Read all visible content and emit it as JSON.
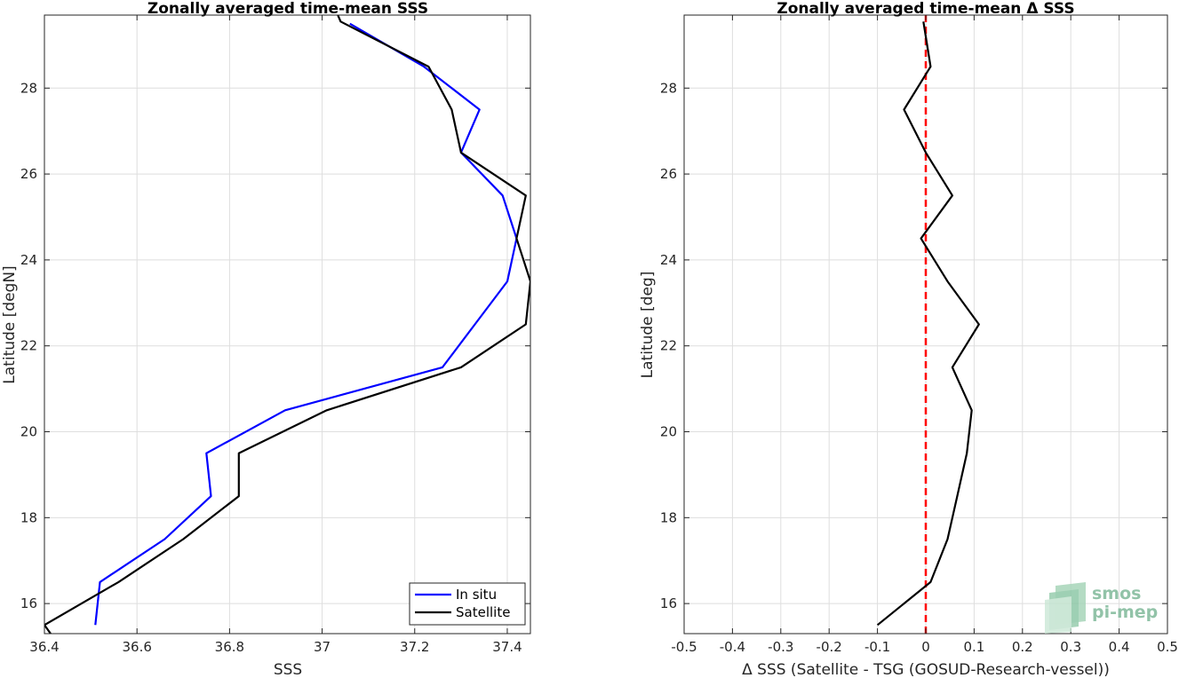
{
  "chart_data": [
    {
      "type": "line",
      "title": "Zonally averaged time-mean SSS",
      "xlabel": "SSS",
      "ylabel": "Latitude [degN]",
      "xlim": [
        36.4,
        37.45
      ],
      "ylim": [
        15.3,
        29.7
      ],
      "xticks": [
        36.4,
        36.6,
        36.8,
        37.0,
        37.2,
        37.4
      ],
      "xtick_labels": [
        "36.4",
        "36.6",
        "36.8",
        "37",
        "37.2",
        "37.4"
      ],
      "yticks": [
        16,
        18,
        20,
        22,
        24,
        26,
        28
      ],
      "ytick_labels": [
        "16",
        "18",
        "20",
        "22",
        "24",
        "26",
        "28"
      ],
      "grid": true,
      "legend": "bottom-right",
      "series": [
        {
          "name": "In situ",
          "color": "#0000ff",
          "points": [
            [
              37.06,
              29.5
            ],
            [
              37.22,
              28.5
            ],
            [
              37.34,
              27.5
            ],
            [
              37.3,
              26.5
            ],
            [
              37.39,
              25.5
            ],
            [
              37.42,
              24.5
            ],
            [
              37.4,
              23.5
            ],
            [
              37.33,
              22.5
            ],
            [
              37.26,
              21.5
            ],
            [
              36.92,
              20.5
            ],
            [
              36.75,
              19.5
            ],
            [
              36.76,
              18.5
            ],
            [
              36.66,
              17.5
            ],
            [
              36.52,
              16.5
            ],
            [
              36.51,
              15.5
            ]
          ]
        },
        {
          "name": "Satellite",
          "color": "#000000",
          "points": [
            [
              37.03,
              29.8
            ],
            [
              37.04,
              29.55
            ],
            [
              37.23,
              28.5
            ],
            [
              37.28,
              27.5
            ],
            [
              37.3,
              26.5
            ],
            [
              37.44,
              25.5
            ],
            [
              37.42,
              24.5
            ],
            [
              37.45,
              23.5
            ],
            [
              37.44,
              22.5
            ],
            [
              37.3,
              21.5
            ],
            [
              37.01,
              20.5
            ],
            [
              36.82,
              19.5
            ],
            [
              36.82,
              18.5
            ],
            [
              36.7,
              17.5
            ],
            [
              36.56,
              16.5
            ],
            [
              36.4,
              15.5
            ],
            [
              36.42,
              15.2
            ]
          ]
        }
      ]
    },
    {
      "type": "line",
      "title": "Zonally averaged time-mean Δ SSS",
      "xlabel": "Δ SSS (Satellite - TSG (GOSUD-Research-vessel))",
      "ylabel": "Latitude [deg]",
      "xlim": [
        -0.5,
        0.5
      ],
      "ylim": [
        15.3,
        29.7
      ],
      "xticks": [
        -0.5,
        -0.4,
        -0.3,
        -0.2,
        -0.1,
        0,
        0.1,
        0.2,
        0.3,
        0.4,
        0.5
      ],
      "xtick_labels": [
        "-0.5",
        "-0.4",
        "-0.3",
        "-0.2",
        "-0.1",
        "0",
        "0.1",
        "0.2",
        "0.3",
        "0.4",
        "0.5"
      ],
      "yticks": [
        16,
        18,
        20,
        22,
        24,
        26,
        28
      ],
      "ytick_labels": [
        "16",
        "18",
        "20",
        "22",
        "24",
        "26",
        "28"
      ],
      "grid": true,
      "reference_line": {
        "x": 0,
        "color": "#ff0000",
        "style": "dashed"
      },
      "series": [
        {
          "color": "#000000",
          "points": [
            [
              -0.005,
              29.55
            ],
            [
              0.01,
              28.5
            ],
            [
              -0.045,
              27.5
            ],
            [
              0.0,
              26.5
            ],
            [
              0.055,
              25.5
            ],
            [
              -0.01,
              24.5
            ],
            [
              0.045,
              23.5
            ],
            [
              0.11,
              22.5
            ],
            [
              0.055,
              21.5
            ],
            [
              0.095,
              20.5
            ],
            [
              0.085,
              19.5
            ],
            [
              0.065,
              18.5
            ],
            [
              0.045,
              17.5
            ],
            [
              0.01,
              16.5
            ],
            [
              -0.1,
              15.5
            ]
          ]
        }
      ]
    }
  ],
  "logo": {
    "line1": "smos",
    "line2": "pi-mep",
    "color": "#7fb99a"
  }
}
